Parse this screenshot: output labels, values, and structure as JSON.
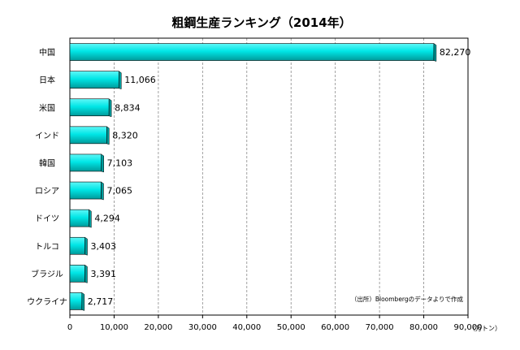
{
  "chart_data": {
    "type": "bar",
    "orientation": "horizontal",
    "title": "粗鋼生産ランキング（2014年）",
    "categories": [
      "中国",
      "日本",
      "米国",
      "インド",
      "韓国",
      "ロシア",
      "ドイツ",
      "トルコ",
      "ブラジル",
      "ウクライナ"
    ],
    "values": [
      82270,
      11066,
      8834,
      8320,
      7103,
      7065,
      4294,
      3403,
      3391,
      2717
    ],
    "value_labels": [
      "82,270",
      "11,066",
      "8,834",
      "8,320",
      "7,103",
      "7,065",
      "4,294",
      "3,403",
      "3,391",
      "2,717"
    ],
    "xlim": [
      0,
      90000
    ],
    "x_ticks": [
      0,
      10000,
      20000,
      30000,
      40000,
      50000,
      60000,
      70000,
      80000,
      90000
    ],
    "x_tick_labels": [
      "0",
      "10,000",
      "20,000",
      "30,000",
      "40,000",
      "50,000",
      "60,000",
      "70,000",
      "80,000",
      "90,000"
    ],
    "xlabel": "（万トン）",
    "source_note": "（出所）Bloombergのデータよりで作成",
    "grid": true,
    "legend": "none",
    "bar_color": "#00e6e6",
    "bar_shade_color": "#009a9a"
  }
}
